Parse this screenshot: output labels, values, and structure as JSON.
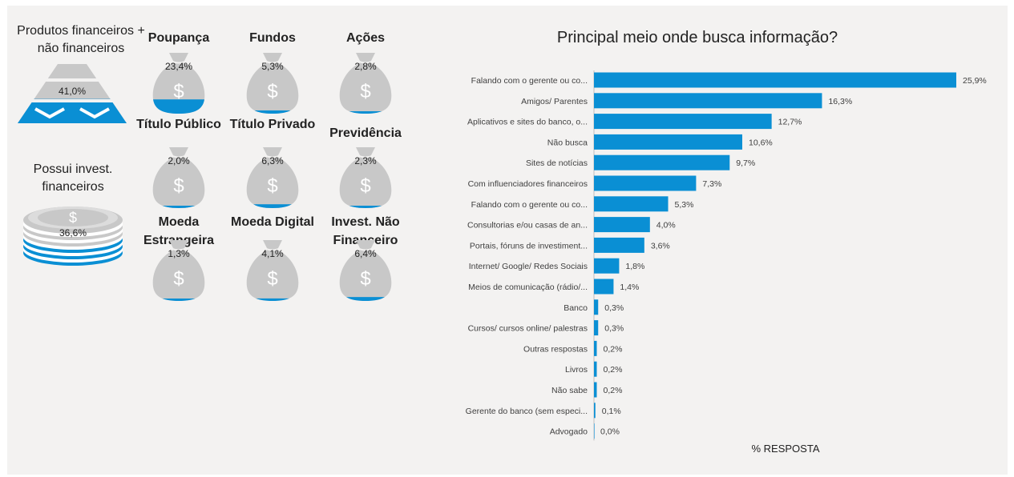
{
  "left": {
    "pyramid": {
      "title": "Produtos financeiros + não financeiros",
      "value": "41,0%",
      "fill_fraction": 0.41
    },
    "coins": {
      "title": "Possui invest. financeiros",
      "value": "36,6%",
      "fill_fraction": 0.366
    }
  },
  "products": [
    {
      "name": "Poupança",
      "value": "23,4%",
      "fraction": 0.234
    },
    {
      "name": "Fundos",
      "value": "5,3%",
      "fraction": 0.053
    },
    {
      "name": "Ações",
      "value": "2,8%",
      "fraction": 0.028
    },
    {
      "name": "Título Público",
      "value": "2,0%",
      "fraction": 0.02
    },
    {
      "name": "Título Privado",
      "value": "6,3%",
      "fraction": 0.063
    },
    {
      "name": "Previdência",
      "value": "2,3%",
      "fraction": 0.023
    },
    {
      "name": "Moeda Estrangeira",
      "value": "1,3%",
      "fraction": 0.013
    },
    {
      "name": "Moeda Digital",
      "value": "4,1%",
      "fraction": 0.041
    },
    {
      "name": "Invest. Não Financeiro",
      "value": "6,4%",
      "fraction": 0.064
    }
  ],
  "icons": {
    "bag": "money-bag-icon",
    "dollar": "dollar-sign-icon"
  },
  "colors": {
    "accent": "#0a8fd4",
    "gray": "#c8c8c8",
    "panel": "#f3f2f1"
  },
  "chart_data": {
    "type": "bar",
    "orientation": "horizontal",
    "title": "Principal meio onde busca informação?",
    "xlabel": "% RESPOSTA",
    "ylabel": "",
    "xlim": [
      0,
      25.9
    ],
    "categories": [
      "Falando com o gerente ou co...",
      "Amigos/ Parentes",
      "Aplicativos e sites do banco, o...",
      "Não busca",
      "Sites de notícias",
      "Com influenciadores financeiros",
      "Falando com o gerente ou co...",
      "Consultorias e/ou casas de an...",
      "Portais, fóruns de investiment...",
      "Internet/ Google/ Redes Sociais",
      "Meios de comunicação (rádio/...",
      "Banco",
      "Cursos/ cursos online/ palestras",
      "Outras respostas",
      "Livros",
      "Não sabe",
      "Gerente do banco (sem especi...",
      "Advogado"
    ],
    "values": [
      25.9,
      16.3,
      12.7,
      10.6,
      9.7,
      7.3,
      5.3,
      4.0,
      3.6,
      1.8,
      1.4,
      0.3,
      0.3,
      0.2,
      0.2,
      0.2,
      0.1,
      0.0
    ],
    "labels": [
      "25,9%",
      "16,3%",
      "12,7%",
      "10,6%",
      "9,7%",
      "7,3%",
      "5,3%",
      "4,0%",
      "3,6%",
      "1,8%",
      "1,4%",
      "0,3%",
      "0,3%",
      "0,2%",
      "0,2%",
      "0,2%",
      "0,1%",
      "0,0%"
    ]
  }
}
